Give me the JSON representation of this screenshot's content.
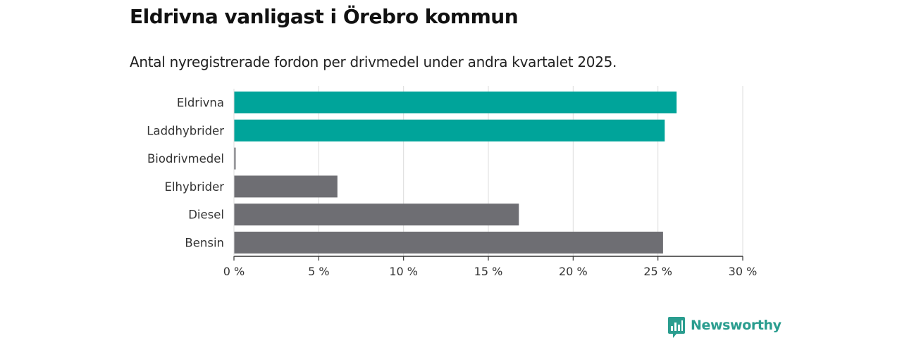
{
  "title": "Eldrivna vanligast i Örebro kommun",
  "subtitle": "Antal nyregistrerade fordon per drivmedel under andra kvartalet 2025.",
  "brand": {
    "name": "Newsworthy",
    "icon": "newsworthy-logo-icon",
    "color": "#2a9d8f"
  },
  "colors": {
    "highlight": "#00a49a",
    "default": "#6e6e73",
    "grid": "#dcdcdc",
    "axis": "#333333"
  },
  "chart_data": {
    "type": "bar",
    "orientation": "horizontal",
    "categories": [
      "Eldrivna",
      "Laddhybrider",
      "Biodrivmedel",
      "Elhybrider",
      "Diesel",
      "Bensin"
    ],
    "values": [
      26.1,
      25.4,
      0.1,
      6.1,
      16.8,
      25.3
    ],
    "highlighted": [
      true,
      true,
      false,
      false,
      false,
      false
    ],
    "unit": "%",
    "xlim": [
      0,
      30
    ],
    "xticks": [
      0,
      5,
      10,
      15,
      20,
      25,
      30
    ],
    "xtick_labels": [
      "0 %",
      "5 %",
      "10 %",
      "15 %",
      "20 %",
      "25 %",
      "30 %"
    ],
    "grid": true,
    "legend": "none"
  }
}
